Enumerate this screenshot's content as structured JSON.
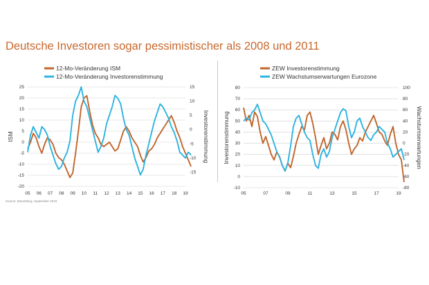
{
  "title": "Deutsche Investoren sogar pessimistischer als 2008 und 2011",
  "source": "Source: Bloomberg, September 2019",
  "colors": {
    "title": "#c9682d",
    "orange": "#c0642a",
    "cyan": "#2bb3e0",
    "grid": "#cfcfcf"
  },
  "chart_data": [
    {
      "type": "line",
      "x_ticks": [
        "05",
        "06",
        "07",
        "08",
        "09",
        "10",
        "11",
        "12",
        "13",
        "14",
        "15",
        "16",
        "17",
        "18",
        "19"
      ],
      "ylabel": "ISM",
      "y2label": "Investorenstimmung",
      "ylim": [
        -20,
        25
      ],
      "yticks": [
        -20,
        -15,
        -10,
        -5,
        0,
        5,
        10,
        15,
        20,
        25
      ],
      "y2lim": [
        -20,
        15
      ],
      "y2ticks": [
        -15,
        -10,
        -5,
        0,
        5,
        10,
        15
      ],
      "legend": "top-left",
      "grid": true,
      "series": [
        {
          "name": "12-Mo-Veränderung ISM",
          "axis": "left",
          "color": "#c0642a",
          "x": [
            2005.0,
            2005.25,
            2005.5,
            2005.75,
            2006.0,
            2006.25,
            2006.5,
            2006.75,
            2007.0,
            2007.25,
            2007.5,
            2007.75,
            2008.0,
            2008.25,
            2008.5,
            2008.75,
            2009.0,
            2009.25,
            2009.5,
            2009.75,
            2010.0,
            2010.25,
            2010.5,
            2010.75,
            2011.0,
            2011.25,
            2011.5,
            2011.75,
            2012.0,
            2012.25,
            2012.5,
            2012.75,
            2013.0,
            2013.25,
            2013.5,
            2013.75,
            2014.0,
            2014.25,
            2014.5,
            2014.75,
            2015.0,
            2015.25,
            2015.5,
            2015.75,
            2016.0,
            2016.25,
            2016.5,
            2016.75,
            2017.0,
            2017.25,
            2017.5,
            2017.75,
            2018.0,
            2018.25,
            2018.5,
            2018.75,
            2019.0,
            2019.25,
            2019.5
          ],
          "values": [
            -3,
            0,
            4,
            2,
            -2,
            -5,
            -1,
            2,
            1,
            -1,
            -5,
            -7,
            -8,
            -10,
            -13,
            -16,
            -14,
            -5,
            5,
            16,
            20,
            21,
            14,
            8,
            4,
            2,
            -1,
            -2,
            -1,
            0,
            -2,
            -4,
            -3,
            1,
            5,
            7,
            5,
            2,
            0,
            -2,
            -6,
            -9,
            -7,
            -4,
            -3,
            -1,
            2,
            4,
            6,
            8,
            10,
            12,
            9,
            5,
            2,
            -2,
            -5,
            -8,
            -11
          ]
        },
        {
          "name": "12-Mo-Veränderung Investorenstimmung",
          "axis": "right",
          "color": "#2bb3e0",
          "x": [
            2005.0,
            2005.25,
            2005.5,
            2005.75,
            2006.0,
            2006.25,
            2006.5,
            2006.75,
            2007.0,
            2007.25,
            2007.5,
            2007.75,
            2008.0,
            2008.25,
            2008.5,
            2008.75,
            2009.0,
            2009.25,
            2009.5,
            2009.75,
            2010.0,
            2010.25,
            2010.5,
            2010.75,
            2011.0,
            2011.25,
            2011.5,
            2011.75,
            2012.0,
            2012.25,
            2012.5,
            2012.75,
            2013.0,
            2013.25,
            2013.5,
            2013.75,
            2014.0,
            2014.25,
            2014.5,
            2014.75,
            2015.0,
            2015.25,
            2015.5,
            2015.75,
            2016.0,
            2016.25,
            2016.5,
            2016.75,
            2017.0,
            2017.25,
            2017.5,
            2017.75,
            2018.0,
            2018.25,
            2018.5,
            2018.75,
            2019.0,
            2019.25,
            2019.5
          ],
          "values": [
            -8,
            -2,
            1,
            -1,
            -3,
            1,
            0,
            -2,
            -6,
            -9,
            -12,
            -14,
            -13,
            -10,
            -8,
            -4,
            5,
            10,
            12,
            15,
            10,
            8,
            4,
            0,
            -4,
            -8,
            -6,
            -3,
            2,
            5,
            8,
            12,
            11,
            9,
            4,
            0,
            -2,
            -6,
            -10,
            -13,
            -16,
            -14,
            -9,
            -5,
            -1,
            3,
            6,
            9,
            8,
            6,
            4,
            1,
            -1,
            -4,
            -8,
            -9,
            -10,
            -8,
            -9
          ]
        }
      ]
    },
    {
      "type": "line",
      "x_ticks": [
        "05",
        "07",
        "09",
        "11",
        "13",
        "15",
        "17",
        "19"
      ],
      "ylabel": "Investorenstimmung",
      "y2label": "Wachstumserwartungen",
      "ylim": [
        -10,
        80
      ],
      "yticks": [
        -10,
        0,
        10,
        20,
        30,
        40,
        50,
        60,
        70,
        80
      ],
      "y2lim": [
        -80,
        100
      ],
      "y2ticks": [
        -80,
        -60,
        -40,
        -20,
        0,
        20,
        40,
        60,
        80,
        100
      ],
      "legend": "top-left",
      "grid": true,
      "series": [
        {
          "name": "ZEW Investorenstimmung",
          "axis": "left",
          "color": "#c0642a",
          "x": [
            2005.0,
            2005.25,
            2005.5,
            2005.75,
            2006.0,
            2006.25,
            2006.5,
            2006.75,
            2007.0,
            2007.25,
            2007.5,
            2007.75,
            2008.0,
            2008.25,
            2008.5,
            2008.75,
            2009.0,
            2009.25,
            2009.5,
            2009.75,
            2010.0,
            2010.25,
            2010.5,
            2010.75,
            2011.0,
            2011.25,
            2011.5,
            2011.75,
            2012.0,
            2012.25,
            2012.5,
            2012.75,
            2013.0,
            2013.25,
            2013.5,
            2013.75,
            2014.0,
            2014.25,
            2014.5,
            2014.75,
            2015.0,
            2015.25,
            2015.5,
            2015.75,
            2016.0,
            2016.25,
            2016.5,
            2016.75,
            2017.0,
            2017.25,
            2017.5,
            2017.75,
            2018.0,
            2018.25,
            2018.5,
            2018.75,
            2019.0,
            2019.25,
            2019.5
          ],
          "values": [
            62,
            50,
            55,
            45,
            58,
            54,
            40,
            30,
            36,
            28,
            20,
            15,
            22,
            18,
            10,
            5,
            12,
            8,
            18,
            30,
            38,
            45,
            42,
            55,
            58,
            48,
            35,
            20,
            28,
            35,
            25,
            30,
            40,
            38,
            33,
            45,
            50,
            42,
            30,
            20,
            25,
            28,
            35,
            32,
            40,
            45,
            50,
            55,
            48,
            40,
            38,
            32,
            28,
            38,
            45,
            30,
            20,
            15,
            -5
          ]
        },
        {
          "name": "ZEW Wachstumserwartungen Eurozone",
          "axis": "right",
          "color": "#2bb3e0",
          "x": [
            2005.0,
            2005.25,
            2005.5,
            2005.75,
            2006.0,
            2006.25,
            2006.5,
            2006.75,
            2007.0,
            2007.25,
            2007.5,
            2007.75,
            2008.0,
            2008.25,
            2008.5,
            2008.75,
            2009.0,
            2009.25,
            2009.5,
            2009.75,
            2010.0,
            2010.25,
            2010.5,
            2010.75,
            2011.0,
            2011.25,
            2011.5,
            2011.75,
            2012.0,
            2012.25,
            2012.5,
            2012.75,
            2013.0,
            2013.25,
            2013.5,
            2013.75,
            2014.0,
            2014.25,
            2014.5,
            2014.75,
            2015.0,
            2015.25,
            2015.5,
            2015.75,
            2016.0,
            2016.25,
            2016.5,
            2016.75,
            2017.0,
            2017.25,
            2017.5,
            2017.75,
            2018.0,
            2018.25,
            2018.5,
            2018.75,
            2019.0,
            2019.25,
            2019.5
          ],
          "values": [
            40,
            45,
            42,
            55,
            60,
            70,
            55,
            40,
            35,
            25,
            15,
            0,
            -15,
            -25,
            -40,
            -50,
            -35,
            -5,
            30,
            45,
            50,
            35,
            20,
            10,
            5,
            -20,
            -40,
            -45,
            -20,
            -10,
            -25,
            -15,
            10,
            25,
            40,
            55,
            62,
            58,
            30,
            10,
            20,
            40,
            45,
            30,
            20,
            10,
            5,
            15,
            20,
            30,
            25,
            20,
            0,
            -10,
            -25,
            -20,
            -15,
            -10,
            -30
          ]
        }
      ]
    }
  ]
}
